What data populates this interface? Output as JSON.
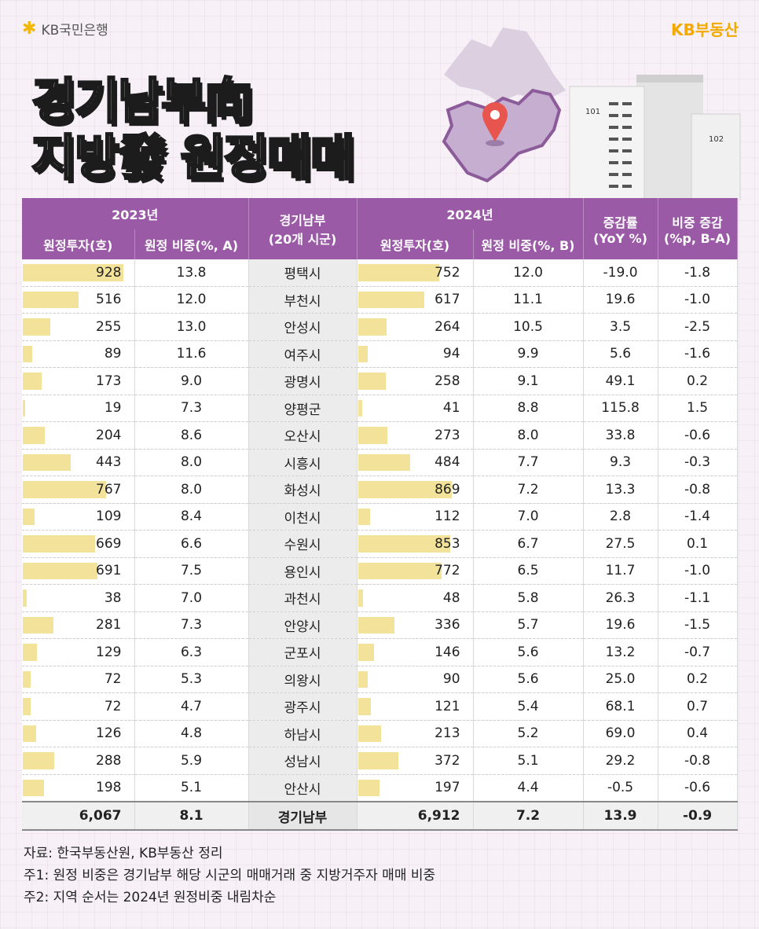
{
  "brand_left": "KB국민은행",
  "brand_right": "KB부동산",
  "title_line1": "경기남부向",
  "title_line2": "지방發 원정매매",
  "map_labels": {
    "bldg1": "101",
    "bldg2": "102"
  },
  "header": {
    "y2023": "2023년",
    "y2024": "2024년",
    "region_line1": "경기남부",
    "region_line2": "(20개 시군)",
    "invest": "원정투자(호)",
    "share_a": "원정 비중(%, A)",
    "share_b": "원정 비중(%, B)",
    "yoy_line1": "증감률",
    "yoy_line2": "(YoY %)",
    "diff_line1": "비중 증감",
    "diff_line2": "(%p, B-A)"
  },
  "rows": [
    {
      "inv23": "928",
      "sh23": "13.8",
      "city": "평택시",
      "inv24": "752",
      "sh24": "12.0",
      "yoy": "-19.0",
      "diff": "-1.8"
    },
    {
      "inv23": "516",
      "sh23": "12.0",
      "city": "부천시",
      "inv24": "617",
      "sh24": "11.1",
      "yoy": "19.6",
      "diff": "-1.0"
    },
    {
      "inv23": "255",
      "sh23": "13.0",
      "city": "안성시",
      "inv24": "264",
      "sh24": "10.5",
      "yoy": "3.5",
      "diff": "-2.5"
    },
    {
      "inv23": "89",
      "sh23": "11.6",
      "city": "여주시",
      "inv24": "94",
      "sh24": "9.9",
      "yoy": "5.6",
      "diff": "-1.6"
    },
    {
      "inv23": "173",
      "sh23": "9.0",
      "city": "광명시",
      "inv24": "258",
      "sh24": "9.1",
      "yoy": "49.1",
      "diff": "0.2"
    },
    {
      "inv23": "19",
      "sh23": "7.3",
      "city": "양평군",
      "inv24": "41",
      "sh24": "8.8",
      "yoy": "115.8",
      "diff": "1.5"
    },
    {
      "inv23": "204",
      "sh23": "8.6",
      "city": "오산시",
      "inv24": "273",
      "sh24": "8.0",
      "yoy": "33.8",
      "diff": "-0.6"
    },
    {
      "inv23": "443",
      "sh23": "8.0",
      "city": "시흥시",
      "inv24": "484",
      "sh24": "7.7",
      "yoy": "9.3",
      "diff": "-0.3"
    },
    {
      "inv23": "767",
      "sh23": "8.0",
      "city": "화성시",
      "inv24": "869",
      "sh24": "7.2",
      "yoy": "13.3",
      "diff": "-0.8"
    },
    {
      "inv23": "109",
      "sh23": "8.4",
      "city": "이천시",
      "inv24": "112",
      "sh24": "7.0",
      "yoy": "2.8",
      "diff": "-1.4"
    },
    {
      "inv23": "669",
      "sh23": "6.6",
      "city": "수원시",
      "inv24": "853",
      "sh24": "6.7",
      "yoy": "27.5",
      "diff": "0.1"
    },
    {
      "inv23": "691",
      "sh23": "7.5",
      "city": "용인시",
      "inv24": "772",
      "sh24": "6.5",
      "yoy": "11.7",
      "diff": "-1.0"
    },
    {
      "inv23": "38",
      "sh23": "7.0",
      "city": "과천시",
      "inv24": "48",
      "sh24": "5.8",
      "yoy": "26.3",
      "diff": "-1.1"
    },
    {
      "inv23": "281",
      "sh23": "7.3",
      "city": "안양시",
      "inv24": "336",
      "sh24": "5.7",
      "yoy": "19.6",
      "diff": "-1.5"
    },
    {
      "inv23": "129",
      "sh23": "6.3",
      "city": "군포시",
      "inv24": "146",
      "sh24": "5.6",
      "yoy": "13.2",
      "diff": "-0.7"
    },
    {
      "inv23": "72",
      "sh23": "5.3",
      "city": "의왕시",
      "inv24": "90",
      "sh24": "5.6",
      "yoy": "25.0",
      "diff": "0.2"
    },
    {
      "inv23": "72",
      "sh23": "4.7",
      "city": "광주시",
      "inv24": "121",
      "sh24": "5.4",
      "yoy": "68.1",
      "diff": "0.7"
    },
    {
      "inv23": "126",
      "sh23": "4.8",
      "city": "하남시",
      "inv24": "213",
      "sh24": "5.2",
      "yoy": "69.0",
      "diff": "0.4"
    },
    {
      "inv23": "288",
      "sh23": "5.9",
      "city": "성남시",
      "inv24": "372",
      "sh24": "5.1",
      "yoy": "29.2",
      "diff": "-0.8"
    },
    {
      "inv23": "198",
      "sh23": "5.1",
      "city": "안산시",
      "inv24": "197",
      "sh24": "4.4",
      "yoy": "-0.5",
      "diff": "-0.6"
    }
  ],
  "total": {
    "inv23": "6,067",
    "sh23": "8.1",
    "city": "경기남부",
    "inv24": "6,912",
    "sh24": "7.2",
    "yoy": "13.9",
    "diff": "-0.9"
  },
  "notes": [
    "자료: 한국부동산원, KB부동산 정리",
    "주1: 원정 비중은 경기남부 해당 시군의 매매거래 중 지방거주자 매매 비중",
    "주2: 지역 순서는 2024년 원정비중 내림차순"
  ],
  "colors": {
    "header": "#9a5aa6",
    "bar": "#f3e39a",
    "brand": "#f2a900"
  }
}
